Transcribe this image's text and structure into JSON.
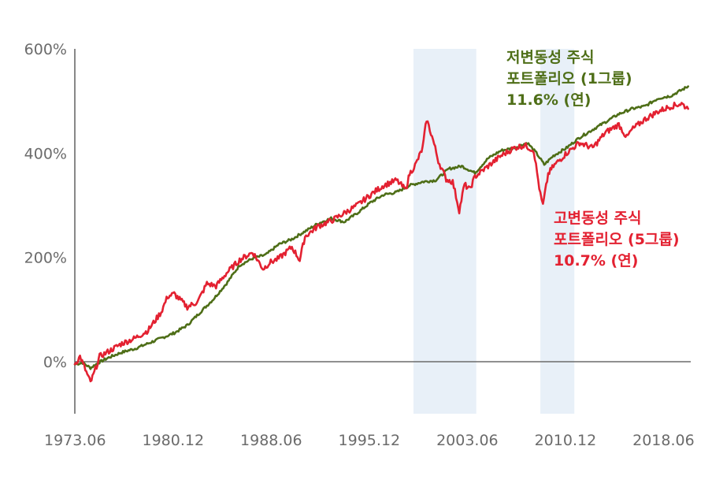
{
  "chart_data": {
    "type": "line",
    "x_ticks": [
      "1973.06",
      "1980.12",
      "1988.06",
      "1995.12",
      "2003.06",
      "2010.12",
      "2018.06"
    ],
    "y_ticks": [
      "600%",
      "400%",
      "200%",
      "0%"
    ],
    "ylim": [
      -100,
      600
    ],
    "xlim": [
      1973.4,
      2020.5
    ],
    "grid": false,
    "shaded_periods": [
      [
        1999.3,
        2004.1
      ],
      [
        2009.0,
        2011.6
      ]
    ],
    "series": [
      {
        "name": "저변동성 주식 포트폴리오 (1그룹)",
        "label_lines": [
          "저변동성 주식",
          "포트폴리오 (1그룹)",
          "11.6% (연)"
        ],
        "color": "#4e6e17",
        "x": [
          1973.4,
          1974.0,
          1974.6,
          1975.2,
          1976.0,
          1977.0,
          1978.0,
          1979.0,
          1980.0,
          1981.0,
          1982.0,
          1983.0,
          1984.0,
          1985.0,
          1986.0,
          1987.0,
          1988.0,
          1989.0,
          1990.0,
          1991.0,
          1992.0,
          1993.0,
          1994.0,
          1995.0,
          1996.0,
          1997.0,
          1998.0,
          1999.0,
          2000.0,
          2001.0,
          2002.0,
          2003.0,
          2004.0,
          2005.0,
          2006.0,
          2007.0,
          2008.0,
          2008.7,
          2009.3,
          2010.0,
          2011.0,
          2012.0,
          2013.0,
          2014.0,
          2015.0,
          2016.0,
          2017.0,
          2018.0,
          2019.0,
          2020.3
        ],
        "values": [
          -5,
          -2,
          -12,
          -2,
          8,
          18,
          25,
          35,
          45,
          55,
          70,
          95,
          120,
          150,
          185,
          198,
          205,
          225,
          235,
          250,
          265,
          275,
          268,
          285,
          305,
          320,
          325,
          338,
          345,
          348,
          370,
          375,
          362,
          390,
          405,
          410,
          420,
          400,
          378,
          395,
          410,
          430,
          445,
          460,
          475,
          485,
          490,
          505,
          510,
          528
        ]
      },
      {
        "name": "고변동성 주식 포트폴리오 (5그룹)",
        "label_lines": [
          "고변동성 주식",
          "포트폴리오 (5그룹)",
          "10.7% (연)"
        ],
        "color": "#e32131",
        "x": [
          1973.4,
          1973.8,
          1974.2,
          1974.6,
          1974.9,
          1975.3,
          1976.0,
          1977.0,
          1978.0,
          1979.0,
          1980.0,
          1980.5,
          1981.0,
          1982.0,
          1982.8,
          1983.5,
          1984.2,
          1985.0,
          1986.0,
          1987.0,
          1987.8,
          1988.3,
          1989.0,
          1990.0,
          1990.6,
          1991.0,
          1992.0,
          1993.0,
          1994.0,
          1995.0,
          1996.0,
          1997.0,
          1998.0,
          1998.7,
          1999.0,
          1999.5,
          2000.0,
          2000.3,
          2000.8,
          2001.2,
          2001.8,
          2002.3,
          2002.8,
          2003.2,
          2003.6,
          2004.0,
          2005.0,
          2006.0,
          2007.0,
          2007.8,
          2008.5,
          2009.0,
          2009.2,
          2009.6,
          2010.0,
          2011.0,
          2012.0,
          2013.0,
          2014.0,
          2015.0,
          2015.6,
          2016.0,
          2017.0,
          2018.0,
          2019.0,
          2019.8,
          2020.3
        ],
        "values": [
          -5,
          10,
          -15,
          -40,
          -20,
          10,
          20,
          35,
          45,
          60,
          95,
          125,
          130,
          105,
          115,
          150,
          145,
          170,
          195,
          210,
          178,
          190,
          198,
          220,
          195,
          240,
          260,
          270,
          285,
          300,
          320,
          338,
          348,
          330,
          360,
          380,
          410,
          465,
          425,
          385,
          350,
          345,
          290,
          340,
          330,
          355,
          375,
          395,
          410,
          415,
          405,
          320,
          300,
          360,
          375,
          400,
          420,
          410,
          440,
          455,
          430,
          445,
          465,
          480,
          490,
          495,
          485
        ]
      }
    ]
  }
}
